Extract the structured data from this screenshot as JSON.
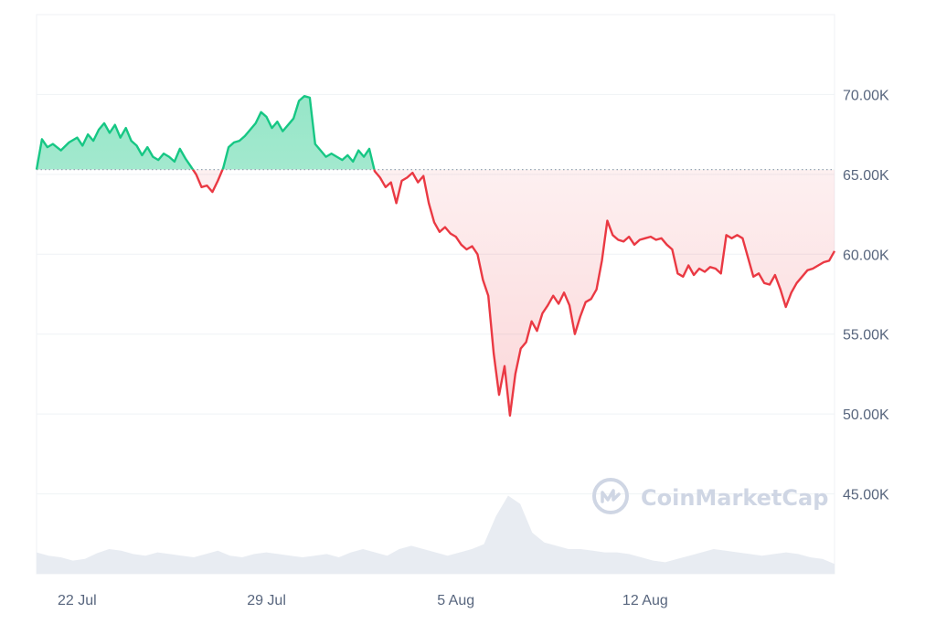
{
  "watermark": {
    "text": "CoinMarketCap",
    "icon": "coinmarketcap-logo-icon"
  },
  "colors": {
    "up_line": "#16c784",
    "up_fill": "#16c784",
    "down_line": "#ea3943",
    "down_fill": "#ea3943",
    "grid": "#eff2f5",
    "baseline": "#9aa4b5",
    "volume": "#e8ecf2",
    "tick_text": "#58667e",
    "watermark": "#cfd6e4"
  },
  "chart_data": {
    "type": "area",
    "title": "",
    "xlabel": "",
    "ylabel": "",
    "x_ticks": [
      "22 Jul",
      "29 Jul",
      "5 Aug",
      "12 Aug"
    ],
    "x_tick_positions": [
      1,
      8,
      15,
      22
    ],
    "y_ticks": [
      45000,
      50000,
      55000,
      60000,
      65000,
      70000
    ],
    "y_tick_labels": [
      "45.00K",
      "50.00K",
      "55.00K",
      "60.00K",
      "65.00K",
      "70.00K"
    ],
    "xlim": [
      -0.5,
      29
    ],
    "ylim": [
      40000,
      75000
    ],
    "grid": true,
    "baseline": 65300,
    "series": [
      {
        "points": [
          [
            -0.5,
            65300
          ],
          [
            -0.3,
            67200
          ],
          [
            -0.1,
            66700
          ],
          [
            0.1,
            66900
          ],
          [
            0.4,
            66500
          ],
          [
            0.7,
            67000
          ],
          [
            1.0,
            67300
          ],
          [
            1.2,
            66800
          ],
          [
            1.4,
            67500
          ],
          [
            1.6,
            67100
          ],
          [
            1.8,
            67800
          ],
          [
            2.0,
            68200
          ],
          [
            2.2,
            67600
          ],
          [
            2.4,
            68100
          ],
          [
            2.6,
            67300
          ],
          [
            2.8,
            67900
          ],
          [
            3.0,
            67100
          ],
          [
            3.2,
            66800
          ],
          [
            3.4,
            66200
          ],
          [
            3.6,
            66700
          ],
          [
            3.8,
            66100
          ],
          [
            4.0,
            65900
          ],
          [
            4.2,
            66300
          ],
          [
            4.4,
            66100
          ],
          [
            4.6,
            65800
          ],
          [
            4.8,
            66600
          ],
          [
            5.0,
            66000
          ],
          [
            5.2,
            65500
          ],
          [
            5.4,
            65000
          ],
          [
            5.6,
            64200
          ],
          [
            5.8,
            64300
          ],
          [
            6.0,
            63900
          ],
          [
            6.2,
            64600
          ],
          [
            6.4,
            65400
          ],
          [
            6.6,
            66700
          ],
          [
            6.8,
            67000
          ],
          [
            7.0,
            67100
          ],
          [
            7.2,
            67400
          ],
          [
            7.4,
            67800
          ],
          [
            7.6,
            68200
          ],
          [
            7.8,
            68900
          ],
          [
            8.0,
            68600
          ],
          [
            8.2,
            67900
          ],
          [
            8.4,
            68300
          ],
          [
            8.6,
            67700
          ],
          [
            8.8,
            68100
          ],
          [
            9.0,
            68500
          ],
          [
            9.2,
            69600
          ],
          [
            9.4,
            69900
          ],
          [
            9.6,
            69800
          ],
          [
            9.8,
            66900
          ],
          [
            10.0,
            66500
          ],
          [
            10.2,
            66100
          ],
          [
            10.4,
            66300
          ],
          [
            10.6,
            66100
          ],
          [
            10.8,
            65900
          ],
          [
            11.0,
            66200
          ],
          [
            11.2,
            65800
          ],
          [
            11.4,
            66500
          ],
          [
            11.6,
            66100
          ],
          [
            11.8,
            66600
          ],
          [
            12.0,
            65200
          ],
          [
            12.2,
            64800
          ],
          [
            12.4,
            64200
          ],
          [
            12.6,
            64500
          ],
          [
            12.8,
            63200
          ],
          [
            13.0,
            64600
          ],
          [
            13.2,
            64800
          ],
          [
            13.4,
            65100
          ],
          [
            13.6,
            64500
          ],
          [
            13.8,
            64900
          ],
          [
            14.0,
            63200
          ],
          [
            14.2,
            62000
          ],
          [
            14.4,
            61400
          ],
          [
            14.6,
            61700
          ],
          [
            14.8,
            61300
          ],
          [
            15.0,
            61100
          ],
          [
            15.2,
            60600
          ],
          [
            15.4,
            60300
          ],
          [
            15.6,
            60500
          ],
          [
            15.8,
            60000
          ],
          [
            16.0,
            58400
          ],
          [
            16.2,
            57400
          ],
          [
            16.4,
            53800
          ],
          [
            16.6,
            51200
          ],
          [
            16.8,
            53000
          ],
          [
            17.0,
            49900
          ],
          [
            17.2,
            52500
          ],
          [
            17.4,
            54100
          ],
          [
            17.6,
            54500
          ],
          [
            17.8,
            55800
          ],
          [
            18.0,
            55200
          ],
          [
            18.2,
            56300
          ],
          [
            18.4,
            56800
          ],
          [
            18.6,
            57400
          ],
          [
            18.8,
            56900
          ],
          [
            19.0,
            57600
          ],
          [
            19.2,
            56800
          ],
          [
            19.4,
            55000
          ],
          [
            19.6,
            56100
          ],
          [
            19.8,
            57000
          ],
          [
            20.0,
            57200
          ],
          [
            20.2,
            57800
          ],
          [
            20.4,
            59600
          ],
          [
            20.6,
            62100
          ],
          [
            20.8,
            61200
          ],
          [
            21.0,
            60900
          ],
          [
            21.2,
            60800
          ],
          [
            21.4,
            61100
          ],
          [
            21.6,
            60600
          ],
          [
            21.8,
            60900
          ],
          [
            22.0,
            61000
          ],
          [
            22.2,
            61100
          ],
          [
            22.4,
            60900
          ],
          [
            22.6,
            61000
          ],
          [
            22.8,
            60600
          ],
          [
            23.0,
            60300
          ],
          [
            23.2,
            58800
          ],
          [
            23.4,
            58600
          ],
          [
            23.6,
            59300
          ],
          [
            23.8,
            58700
          ],
          [
            24.0,
            59100
          ],
          [
            24.2,
            58900
          ],
          [
            24.4,
            59200
          ],
          [
            24.6,
            59100
          ],
          [
            24.8,
            58800
          ],
          [
            25.0,
            61200
          ],
          [
            25.2,
            61000
          ],
          [
            25.4,
            61200
          ],
          [
            25.6,
            61000
          ],
          [
            25.8,
            59800
          ],
          [
            26.0,
            58600
          ],
          [
            26.2,
            58800
          ],
          [
            26.4,
            58200
          ],
          [
            26.6,
            58100
          ],
          [
            26.8,
            58700
          ],
          [
            27.0,
            57800
          ],
          [
            27.2,
            56700
          ],
          [
            27.4,
            57600
          ],
          [
            27.6,
            58200
          ],
          [
            27.8,
            58600
          ],
          [
            28.0,
            59000
          ],
          [
            28.2,
            59100
          ],
          [
            28.4,
            59300
          ],
          [
            28.6,
            59500
          ],
          [
            28.8,
            59600
          ],
          [
            29.0,
            60200
          ]
        ]
      }
    ],
    "volume": {
      "values": [
        0.26,
        0.22,
        0.2,
        0.16,
        0.18,
        0.25,
        0.3,
        0.28,
        0.24,
        0.22,
        0.26,
        0.24,
        0.22,
        0.2,
        0.24,
        0.28,
        0.22,
        0.2,
        0.24,
        0.26,
        0.24,
        0.22,
        0.2,
        0.22,
        0.24,
        0.2,
        0.26,
        0.3,
        0.26,
        0.22,
        0.3,
        0.34,
        0.3,
        0.26,
        0.22,
        0.26,
        0.3,
        0.36,
        0.7,
        0.95,
        0.85,
        0.5,
        0.38,
        0.34,
        0.3,
        0.3,
        0.28,
        0.26,
        0.26,
        0.24,
        0.2,
        0.16,
        0.14,
        0.18,
        0.22,
        0.26,
        0.3,
        0.28,
        0.26,
        0.24,
        0.22,
        0.24,
        0.26,
        0.24,
        0.2,
        0.18,
        0.12
      ]
    }
  }
}
